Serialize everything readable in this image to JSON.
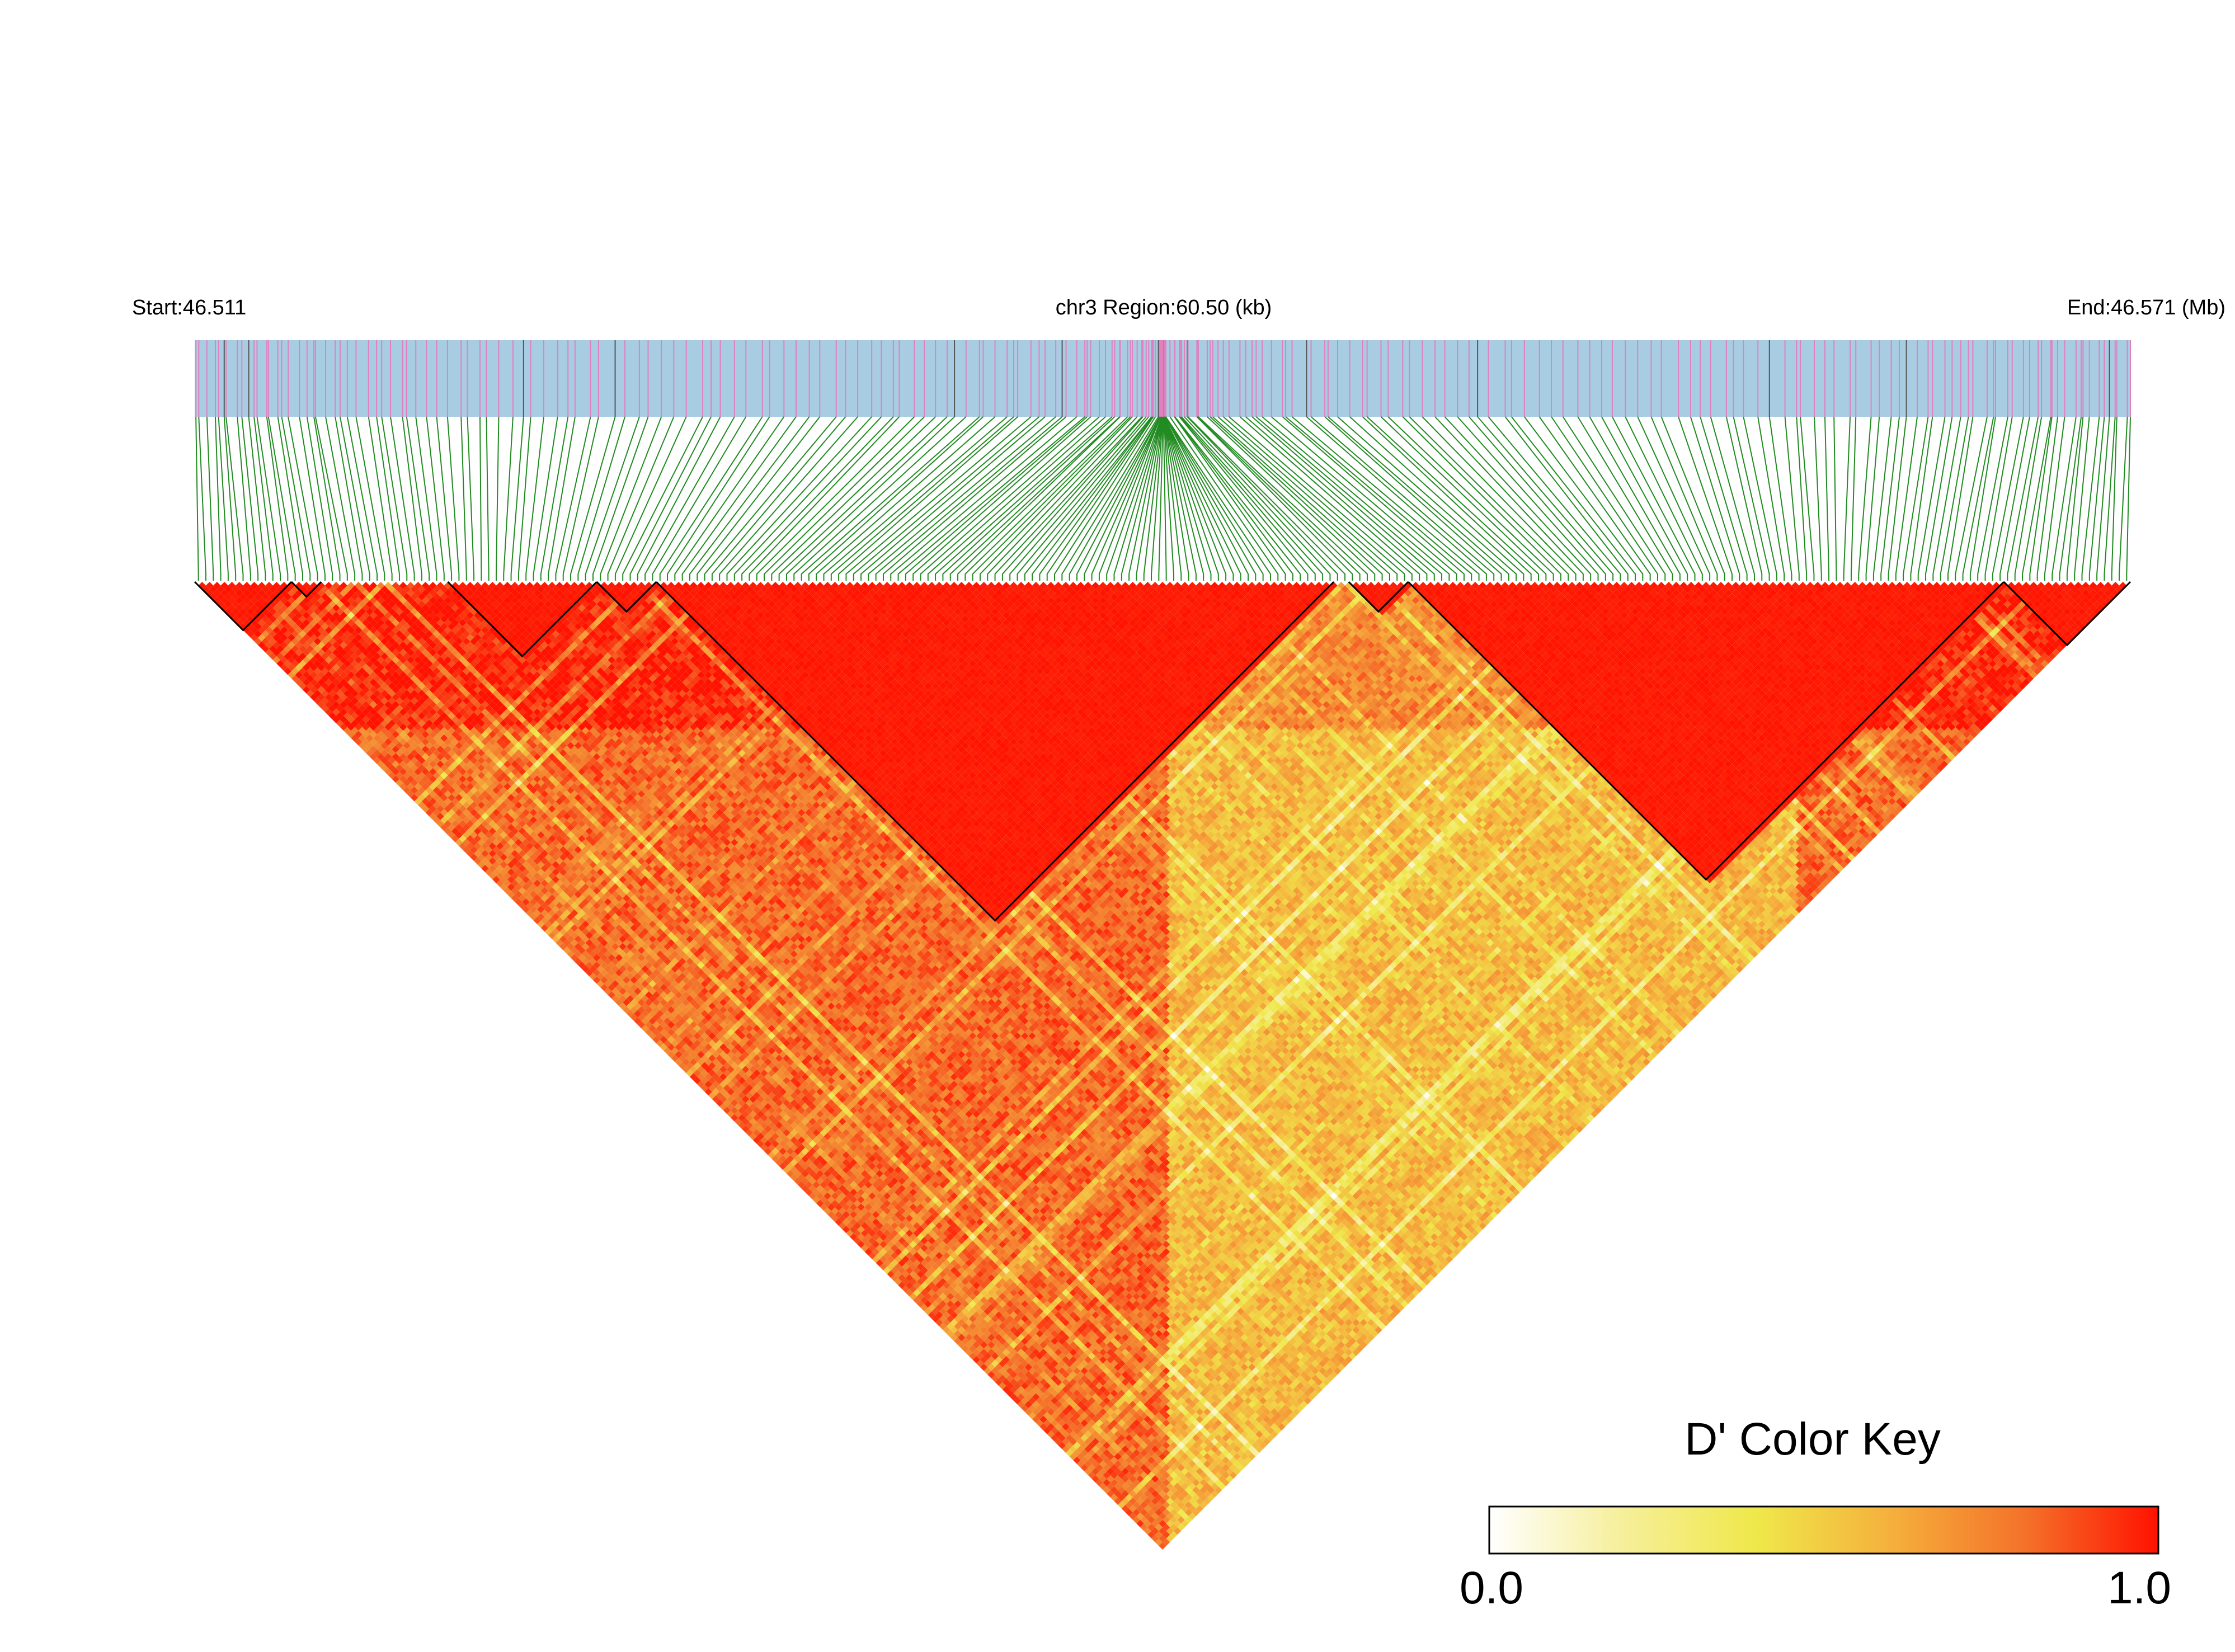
{
  "header": {
    "start_label": "Start:46.511",
    "region_label": "chr3 Region:60.50 (kb)",
    "end_label": "End:46.571 (Mb)"
  },
  "colors": {
    "track_background": "#a8cde2",
    "snp_mark": "#e080c0",
    "snp_mark_dense": "#555555",
    "connector_line": "#228b22",
    "ld_high": "#ff1e00",
    "ld_mid": "#f28a2e",
    "ld_low": "#f5e050",
    "ld_zero": "#ffffff",
    "block_outline": "#000000"
  },
  "color_key": {
    "title": "D' Color Key",
    "min_label": "0.0",
    "max_label": "1.0",
    "stops": [
      "#ffffff",
      "#f6ef9a",
      "#efe84a",
      "#f5b03c",
      "#f4722a",
      "#ff1200"
    ]
  },
  "chart_data": {
    "type": "heatmap",
    "title": "D' Color Key",
    "region": {
      "chromosome": "chr3",
      "start_mb": 46.511,
      "end_mb": 46.571,
      "length_kb": 60.5
    },
    "value_range": [
      0.0,
      1.0
    ],
    "snp_count": 260,
    "ld_blocks": [
      {
        "first_snp": 0,
        "last_snp": 13
      },
      {
        "first_snp": 13,
        "last_snp": 17
      },
      {
        "first_snp": 34,
        "last_snp": 54
      },
      {
        "first_snp": 54,
        "last_snp": 62
      },
      {
        "first_snp": 62,
        "last_snp": 153
      },
      {
        "first_snp": 155,
        "last_snp": 163
      },
      {
        "first_snp": 163,
        "last_snp": 243
      },
      {
        "first_snp": 243,
        "last_snp": 260
      }
    ]
  }
}
